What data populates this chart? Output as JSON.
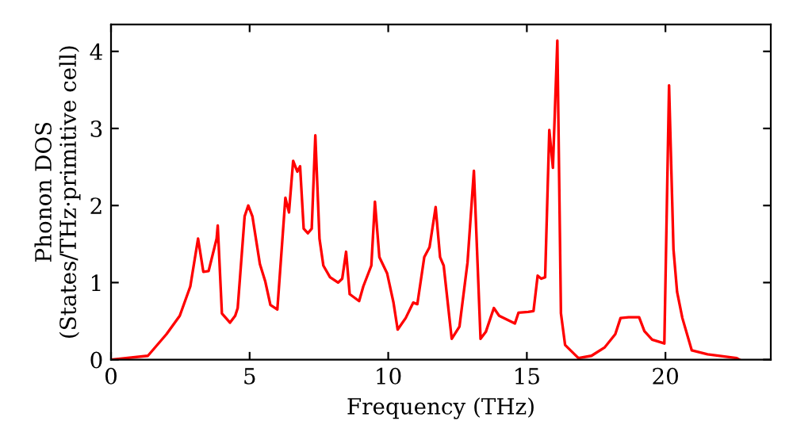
{
  "chart_data": {
    "type": "line",
    "xlabel": "Frequency (THz)",
    "ylabel": "Phonon DOS\n(States/THz·primitive cell)",
    "xlim": [
      0,
      23.8
    ],
    "ylim": [
      0,
      4.35
    ],
    "xticks": [
      0,
      5,
      10,
      15,
      20
    ],
    "yticks": [
      0,
      1,
      2,
      3,
      4
    ],
    "grid": false,
    "marker": "none",
    "line_style": "solid",
    "series": [
      {
        "color": "#ff0000",
        "x": [
          0,
          1.33,
          2.0,
          2.48,
          2.86,
          3.14,
          3.33,
          3.52,
          3.81,
          3.85,
          4.0,
          4.29,
          4.48,
          4.57,
          4.82,
          4.95,
          5.1,
          5.37,
          5.56,
          5.75,
          6.0,
          6.29,
          6.42,
          6.57,
          6.72,
          6.82,
          6.95,
          7.1,
          7.24,
          7.37,
          7.52,
          7.66,
          7.9,
          8.19,
          8.34,
          8.48,
          8.61,
          8.95,
          9.1,
          9.39,
          9.52,
          9.68,
          9.96,
          10.19,
          10.34,
          10.63,
          10.9,
          11.05,
          11.3,
          11.49,
          11.71,
          11.87,
          12.0,
          12.29,
          12.57,
          12.86,
          13.09,
          13.33,
          13.52,
          13.81,
          14.0,
          14.57,
          14.7,
          15.05,
          15.24,
          15.39,
          15.52,
          15.66,
          15.81,
          15.94,
          16.1,
          16.23,
          16.38,
          16.86,
          17.33,
          17.81,
          18.19,
          18.38,
          18.67,
          19.05,
          19.24,
          19.52,
          19.96,
          20.13,
          20.29,
          20.42,
          20.61,
          20.95,
          21.52,
          22.57,
          22.67
        ],
        "values": [
          0,
          0.05,
          0.33,
          0.57,
          0.95,
          1.57,
          1.14,
          1.15,
          1.57,
          1.74,
          0.6,
          0.48,
          0.57,
          0.67,
          1.86,
          2.0,
          1.86,
          1.24,
          1.02,
          0.71,
          0.65,
          2.1,
          1.91,
          2.58,
          2.44,
          2.51,
          1.7,
          1.64,
          1.7,
          2.91,
          1.57,
          1.22,
          1.07,
          1.0,
          1.05,
          1.4,
          0.85,
          0.76,
          0.95,
          1.22,
          2.05,
          1.33,
          1.12,
          0.74,
          0.39,
          0.54,
          0.74,
          0.72,
          1.33,
          1.46,
          1.98,
          1.33,
          1.22,
          0.27,
          0.43,
          1.26,
          2.45,
          0.27,
          0.36,
          0.67,
          0.57,
          0.47,
          0.61,
          0.62,
          0.63,
          1.09,
          1.05,
          1.07,
          2.98,
          2.49,
          4.14,
          0.6,
          0.19,
          0.02,
          0.05,
          0.16,
          0.33,
          0.54,
          0.55,
          0.55,
          0.37,
          0.26,
          0.21,
          3.56,
          1.43,
          0.88,
          0.54,
          0.12,
          0.07,
          0.02,
          0.0
        ]
      }
    ]
  }
}
